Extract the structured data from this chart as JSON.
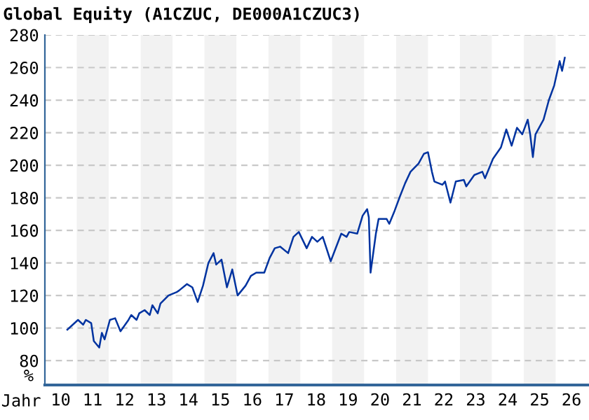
{
  "chart_data": {
    "type": "line",
    "title": "Global Equity (A1CZUC, DE000A1CZUC3)",
    "xlabel": "Jahr",
    "ylabel": "%",
    "series": [
      {
        "color": "#0033a0",
        "x": [
          "2010-09-15",
          "2011-01-15",
          "2011-03-15",
          "2011-04-15",
          "2011-06-15",
          "2011-07-15",
          "2011-09-15",
          "2011-10-15",
          "2011-11-15",
          "2012-01-15",
          "2012-03-15",
          "2012-05-15",
          "2012-08-15",
          "2012-09-15",
          "2012-11-15",
          "2012-12-15",
          "2013-02-15",
          "2013-04-15",
          "2013-05-15",
          "2013-07-15",
          "2013-08-15",
          "2013-11-15",
          "2014-02-15",
          "2014-03-15",
          "2014-06-15",
          "2014-08-15",
          "2014-10-15",
          "2014-12-15",
          "2015-02-15",
          "2015-04-15",
          "2015-05-15",
          "2015-07-15",
          "2015-09-15",
          "2015-11-15",
          "2016-01-15",
          "2016-04-15",
          "2016-06-15",
          "2016-08-15",
          "2016-11-15",
          "2017-01-15",
          "2017-03-15",
          "2017-05-15",
          "2017-08-15",
          "2017-10-15",
          "2017-12-15",
          "2018-03-15",
          "2018-05-15",
          "2018-07-15",
          "2018-09-15",
          "2018-12-15",
          "2019-04-15",
          "2019-06-15",
          "2019-07-15",
          "2019-10-15",
          "2019-12-15",
          "2020-02-05",
          "2020-02-24",
          "2020-03-15",
          "2020-05-15",
          "2020-06-15",
          "2020-09-15",
          "2020-10-15",
          "2020-12-15",
          "2021-02-15",
          "2021-04-15",
          "2021-06-15",
          "2021-09-15",
          "2021-11-15",
          "2022-01-01",
          "2022-02-15",
          "2022-03-15",
          "2022-06-15",
          "2022-07-15",
          "2022-09-15",
          "2022-11-15",
          "2023-02-15",
          "2023-03-15",
          "2023-06-15",
          "2023-09-15",
          "2023-10-15",
          "2024-01-15",
          "2024-04-15",
          "2024-06-15",
          "2024-08-15",
          "2024-10-15",
          "2024-12-15",
          "2025-02-15",
          "2025-03-15",
          "2025-04-15",
          "2025-05-15",
          "2025-08-15",
          "2025-10-15",
          "2025-12-15",
          "2026-02-15",
          "2026-03-15",
          "2026-04-15"
        ],
        "values": [
          99,
          105,
          102,
          105,
          103,
          92,
          88,
          97,
          93,
          105,
          106,
          98,
          105,
          108,
          105,
          109,
          111,
          108,
          114,
          109,
          115,
          120,
          122,
          123,
          127,
          125,
          116,
          126,
          140,
          146,
          139,
          142,
          125,
          136,
          120,
          126,
          132,
          134,
          134,
          143,
          149,
          150,
          146,
          156,
          159,
          149,
          156,
          153,
          156,
          141,
          158,
          156,
          159,
          158,
          169,
          173,
          168,
          134,
          158,
          167,
          167,
          164,
          172,
          181,
          189,
          196,
          201,
          207,
          208,
          196,
          190,
          188,
          190,
          177,
          190,
          191,
          187,
          194,
          196,
          192,
          204,
          211,
          222,
          212,
          223,
          219,
          228,
          219,
          205,
          219,
          228,
          240,
          249,
          264,
          258,
          266
        ]
      }
    ],
    "xlim": [
      "2010-01-01",
      "2027-01-01"
    ],
    "xticks": [
      {
        "value": "2010-07-01",
        "label": "10"
      },
      {
        "value": "2011-07-01",
        "label": "11"
      },
      {
        "value": "2012-07-01",
        "label": "12"
      },
      {
        "value": "2013-07-01",
        "label": "13"
      },
      {
        "value": "2014-07-01",
        "label": "14"
      },
      {
        "value": "2015-07-01",
        "label": "15"
      },
      {
        "value": "2016-07-01",
        "label": "16"
      },
      {
        "value": "2017-07-01",
        "label": "17"
      },
      {
        "value": "2018-07-01",
        "label": "18"
      },
      {
        "value": "2019-07-01",
        "label": "19"
      },
      {
        "value": "2020-07-01",
        "label": "20"
      },
      {
        "value": "2021-07-01",
        "label": "21"
      },
      {
        "value": "2022-07-01",
        "label": "22"
      },
      {
        "value": "2023-07-01",
        "label": "23"
      },
      {
        "value": "2024-07-01",
        "label": "24"
      },
      {
        "value": "2025-07-01",
        "label": "25"
      },
      {
        "value": "2026-07-01",
        "label": "26"
      }
    ],
    "ylim": [
      65,
      280
    ],
    "yticks": [
      80,
      100,
      120,
      140,
      160,
      180,
      200,
      220,
      240,
      260,
      280
    ],
    "bands": [
      {
        "axis": "x",
        "from": "2011-01-01",
        "to": "2012-01-01",
        "color": "#f2f2f2"
      },
      {
        "axis": "x",
        "from": "2013-01-01",
        "to": "2014-01-01",
        "color": "#f2f2f2"
      },
      {
        "axis": "x",
        "from": "2015-01-01",
        "to": "2016-01-01",
        "color": "#f2f2f2"
      },
      {
        "axis": "x",
        "from": "2017-01-01",
        "to": "2018-01-01",
        "color": "#f2f2f2"
      },
      {
        "axis": "x",
        "from": "2019-01-01",
        "to": "2020-01-01",
        "color": "#f2f2f2"
      },
      {
        "axis": "x",
        "from": "2021-01-01",
        "to": "2022-01-01",
        "color": "#f2f2f2"
      },
      {
        "axis": "x",
        "from": "2023-01-01",
        "to": "2024-01-01",
        "color": "#f2f2f2"
      },
      {
        "axis": "x",
        "from": "2025-01-01",
        "to": "2026-01-01",
        "color": "#f2f2f2"
      }
    ],
    "grid": "y"
  }
}
